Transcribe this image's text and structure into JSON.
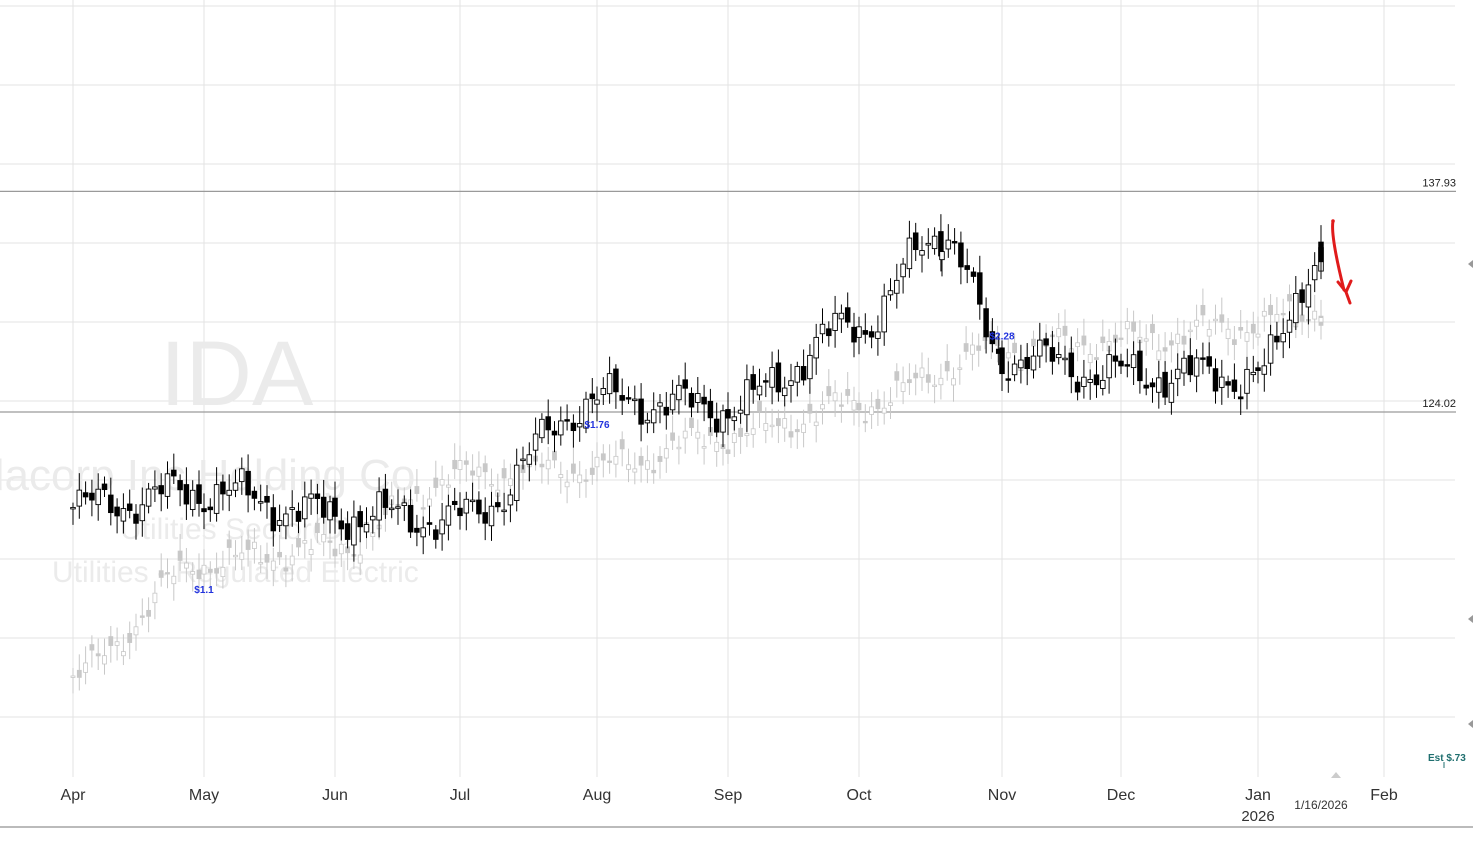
{
  "watermark": {
    "symbol": "IDA",
    "company": "dacorp Inc Holding Co",
    "sector": "Utilities Sector(D)",
    "industry": "Utilities - Regulated Electric"
  },
  "colors": {
    "background": "#ffffff",
    "grid": "#e3e3e3",
    "level_line": "#9a9a9a",
    "up_candle": "#ffffff",
    "down_candle": "#000000",
    "comparison_series": "#c8c8c8",
    "dividend_label": "#2233dd",
    "estimate_label": "#1f6f6f",
    "arrow": "#e01b1b"
  },
  "chart_data": {
    "type": "candlestick",
    "ticker": "IDA",
    "x_axis": {
      "months": [
        "Apr",
        "May",
        "Jun",
        "Jul",
        "Aug",
        "Sep",
        "Oct",
        "Nov",
        "Dec",
        "Jan",
        "Feb"
      ],
      "year_label": "2026",
      "current_date_label": "1/16/2026"
    },
    "y_axis": {
      "range": [
        101,
        150
      ],
      "scale": "linear",
      "tick_labels_shown": false
    },
    "grid": true,
    "reference_levels": [
      {
        "label": "137.93",
        "value": 137.93
      },
      {
        "label": "124.02",
        "value": 124.02
      }
    ],
    "series": [
      {
        "style": "candlestick",
        "monthly_path": [
          {
            "month": "Apr",
            "price": 118.0
          },
          {
            "month": "May",
            "price": 119.0
          },
          {
            "month": "Jun",
            "price": 117.5
          },
          {
            "month": "Jul",
            "price": 117.3
          },
          {
            "month": "Aug",
            "price": 124.8
          },
          {
            "month": "Sep",
            "price": 124.3
          },
          {
            "month": "Oct",
            "price": 129.5
          },
          {
            "month": "Oct 20",
            "price": 135.3
          },
          {
            "month": "Nov",
            "price": 127.5
          },
          {
            "month": "Dec",
            "price": 126.4
          },
          {
            "month": "Jan",
            "price": 126.3
          },
          {
            "month": "1/16/2026",
            "price": 134.0
          }
        ]
      },
      {
        "style": "comparison-ghost",
        "monthly_path": [
          {
            "month": "Apr",
            "price": 107.5
          },
          {
            "month": "May",
            "price": 114.5
          },
          {
            "month": "Jun",
            "price": 115.5
          },
          {
            "month": "Jul",
            "price": 120.0
          },
          {
            "month": "Aug",
            "price": 120.5
          },
          {
            "month": "Sep",
            "price": 122.5
          },
          {
            "month": "Oct",
            "price": 124.5
          },
          {
            "month": "Nov",
            "price": 128.0
          },
          {
            "month": "Dec",
            "price": 128.5
          },
          {
            "month": "Jan",
            "price": 129.5
          },
          {
            "month": "1/16/2026",
            "price": 130.5
          }
        ]
      }
    ],
    "dividend_markers": [
      {
        "label": "$1.1",
        "month": "May"
      },
      {
        "label": "$1.76",
        "month": "Aug"
      },
      {
        "label": "$2.28",
        "month": "Nov"
      }
    ],
    "estimate_marker": {
      "label": "Est $.73"
    },
    "annotation": {
      "type": "arrow",
      "direction": "down",
      "month": "1/16/2026"
    }
  }
}
